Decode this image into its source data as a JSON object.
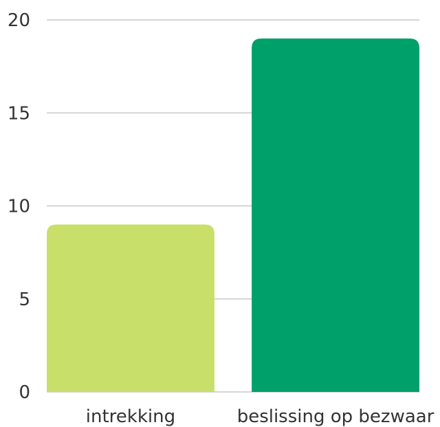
{
  "chart_data": {
    "type": "bar",
    "categories": [
      "intrekking",
      "beslissing op bezwaar"
    ],
    "values": [
      9,
      19
    ],
    "ylim": [
      0,
      20
    ],
    "yticks": [
      0,
      5,
      10,
      15,
      20
    ],
    "grid": true,
    "legend": "none",
    "colors": [
      "#c8df6a",
      "#00a06a"
    ],
    "title": "",
    "xlabel": "",
    "ylabel": ""
  }
}
